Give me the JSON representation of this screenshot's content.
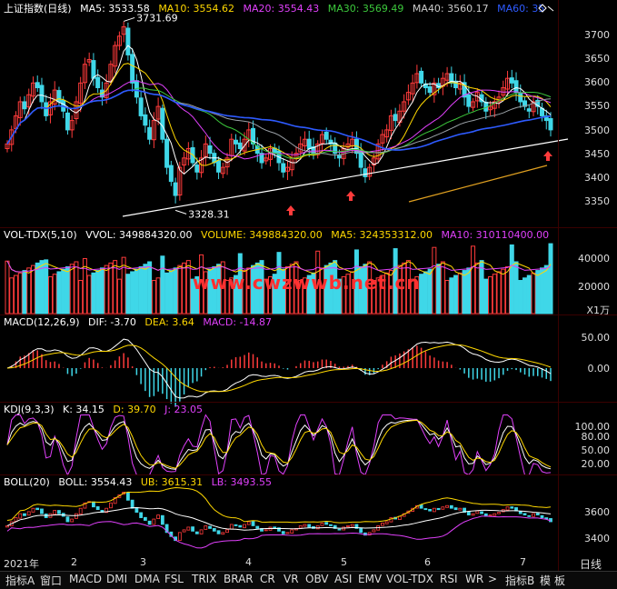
{
  "colors": {
    "up": "#ff3b3b",
    "down": "#3fd7e8",
    "white": "#ffffff",
    "yellow": "#ffd800",
    "magenta": "#e040fb",
    "green": "#3cc83c",
    "blue": "#2e5bff",
    "gray": "#9aa0a6",
    "orange": "#e0a020",
    "watermark": "#ff3030"
  },
  "main": {
    "title": "上证指数(日线)",
    "ma5": "MA5: 3533.58",
    "ma10": "MA10: 3554.62",
    "ma20": "MA20: 3554.43",
    "ma30": "MA30: 3569.49",
    "ma40": "MA40: 3560.17",
    "ma60": "MA60: 35",
    "high_label": "3731.69",
    "low_label": "3328.31",
    "ticks": [
      "3700",
      "3650",
      "3600",
      "3550",
      "3500",
      "3450",
      "3400",
      "3350"
    ]
  },
  "volume": {
    "title": "VOL-TDX(5,10)",
    "vvol": "VVOL: 349884320.00",
    "volume": "VOLUME: 349884320.00",
    "ma5": "MA5: 324353312.00",
    "ma10": "MA10: 310110400.00",
    "ticks": [
      "40000",
      "20000"
    ],
    "unit": "X1万",
    "watermark": "www.cwzwwb.net.cn"
  },
  "macd": {
    "title": "MACD(12,26,9)",
    "dif": "DIF: -3.70",
    "dea": "DEA: 3.64",
    "macd": "MACD: -14.87",
    "ticks": [
      "50.00",
      "0.00"
    ]
  },
  "kdj": {
    "title": "KDJ(9,3,3)",
    "k": "K: 34.15",
    "d": "D: 39.70",
    "j": "J: 23.05",
    "ticks": [
      "100.00",
      "80.00",
      "50.00",
      "20.00"
    ]
  },
  "boll": {
    "title": "BOLL(20)",
    "boll": "BOLL: 3554.43",
    "ub": "UB: 3615.31",
    "lb": "LB: 3493.55",
    "ticks": [
      "3600",
      "3400"
    ]
  },
  "dates": {
    "items": [
      "2021年",
      "2",
      "3",
      "4",
      "5",
      "6",
      "7"
    ],
    "period": "日线"
  },
  "toolbar": [
    "指标A",
    "窗口",
    "MACD",
    "DMI",
    "DMA",
    "FSL",
    "TRIX",
    "BRAR",
    "CR",
    "VR",
    "OBV",
    "ASI",
    "EMV",
    "VOL-TDX",
    "RSI",
    "WR",
    ">",
    "指标B",
    "模",
    "板"
  ],
  "chart_data": {
    "type": "candlestick",
    "title": "上证指数(日线)",
    "ylim": [
      3300,
      3750
    ],
    "annotations": [
      {
        "text": "3731.69"
      },
      {
        "text": "3328.31"
      }
    ],
    "closes": [
      3470,
      3500,
      3530,
      3560,
      3545,
      3575,
      3600,
      3590,
      3560,
      3530,
      3560,
      3585,
      3560,
      3540,
      3500,
      3520,
      3560,
      3600,
      3640,
      3650,
      3610,
      3590,
      3570,
      3600,
      3640,
      3680,
      3700,
      3720,
      3660,
      3600,
      3570,
      3530,
      3510,
      3480,
      3520,
      3550,
      3480,
      3420,
      3390,
      3360,
      3420,
      3440,
      3460,
      3430,
      3410,
      3440,
      3470,
      3450,
      3430,
      3410,
      3420,
      3440,
      3480,
      3470,
      3460,
      3480,
      3500,
      3470,
      3450,
      3430,
      3440,
      3460,
      3450,
      3430,
      3410,
      3420,
      3440,
      3450,
      3470,
      3480,
      3460,
      3450,
      3470,
      3490,
      3480,
      3470,
      3450,
      3440,
      3460,
      3470,
      3480,
      3450,
      3420,
      3400,
      3420,
      3440,
      3470,
      3490,
      3500,
      3530,
      3520,
      3540,
      3560,
      3580,
      3600,
      3620,
      3600,
      3590,
      3580,
      3600,
      3590,
      3610,
      3620,
      3600,
      3590,
      3600,
      3570,
      3550,
      3560,
      3580,
      3560,
      3540,
      3550,
      3560,
      3570,
      3590,
      3610,
      3600,
      3580,
      3560,
      3550,
      3540,
      3560,
      3550,
      3530,
      3520,
      3500
    ]
  }
}
